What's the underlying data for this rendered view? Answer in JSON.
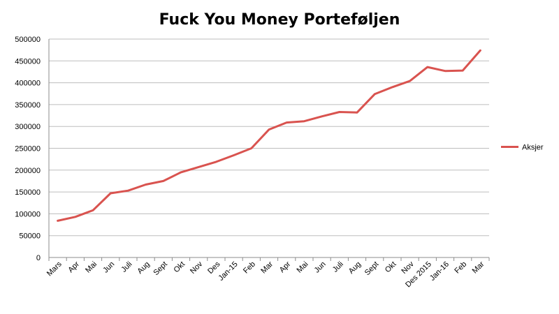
{
  "chart_data": {
    "type": "line",
    "title": "Fuck You Money Porteføljen",
    "xlabel": "",
    "ylabel": "",
    "ylim": [
      0,
      500000
    ],
    "yticks": [
      0,
      50000,
      100000,
      150000,
      200000,
      250000,
      300000,
      350000,
      400000,
      450000,
      500000
    ],
    "categories": [
      "Mars",
      "Apr",
      "Mai",
      "Jun",
      "Juli",
      "Aug",
      "Sept",
      "Okt",
      "Nov",
      "Des",
      "Jan-15",
      "Feb",
      "Mar",
      "Apr",
      "Mai",
      "Jun",
      "Juli",
      "Aug",
      "Sept",
      "Okt",
      "Nov",
      "Des 2015",
      "Jan-16",
      "Feb",
      "Mar"
    ],
    "series": [
      {
        "name": "Aksjer",
        "color": "#d9534f",
        "values": [
          84000,
          93000,
          108000,
          147000,
          153000,
          167000,
          175000,
          195000,
          207000,
          219000,
          234000,
          250000,
          293000,
          309000,
          312000,
          323000,
          333000,
          332000,
          374000,
          390000,
          404000,
          436000,
          427000,
          428000,
          474000
        ]
      }
    ],
    "grid": true,
    "legend": "right"
  }
}
